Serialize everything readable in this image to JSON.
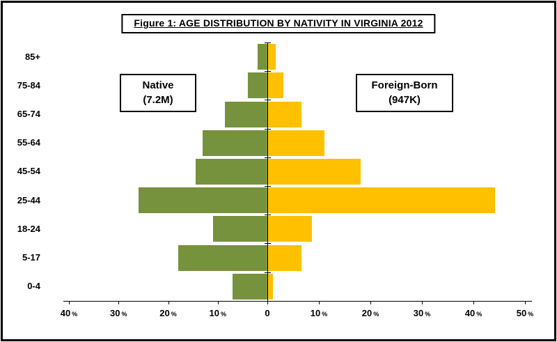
{
  "figure": {
    "title": "Figure 1: AGE DISTRIBUTION BY NATIVITY IN VIRGINIA 2012"
  },
  "legend": {
    "native_line1": "Native",
    "native_line2": "(7.2M)",
    "foreign_line1": "Foreign-Born",
    "foreign_line2": "(947K)"
  },
  "chart_data": {
    "type": "bar",
    "subtype": "population-pyramid",
    "title": "Figure 1: AGE DISTRIBUTION BY NATIVITY IN VIRGINIA 2012",
    "categories": [
      "85+",
      "75-84",
      "65-74",
      "55-64",
      "45-54",
      "25-44",
      "18-24",
      "5-17",
      "0-4"
    ],
    "series": [
      {
        "name": "Native (7.2M)",
        "side": "left",
        "color": "#76923C",
        "values": [
          2,
          4,
          8.5,
          13,
          14.5,
          26,
          11,
          18,
          7
        ]
      },
      {
        "name": "Foreign-Born (947K)",
        "side": "right",
        "color": "#FFC000",
        "values": [
          1.5,
          3,
          6.5,
          11,
          18,
          44,
          8.5,
          6.5,
          1
        ]
      }
    ],
    "x_ticks": [
      -40,
      -30,
      -20,
      -10,
      0,
      10,
      20,
      30,
      40,
      50
    ],
    "unit": "%",
    "xlim": [
      -40,
      50
    ],
    "grid": false,
    "legend_position": "inside-top"
  }
}
